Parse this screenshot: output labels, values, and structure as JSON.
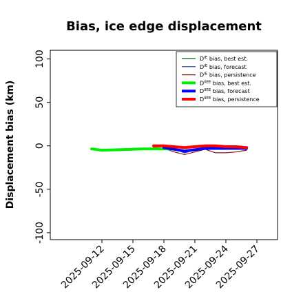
{
  "chart_data": {
    "type": "line",
    "title": "Bias, ice edge displacement",
    "xlabel": "",
    "ylabel": "Displacement bias (km)",
    "ylim": [
      -108,
      110
    ],
    "yticks": [
      -100,
      -50,
      0,
      50,
      100
    ],
    "xlim": [
      "2025-09-07",
      "2025-09-29"
    ],
    "xticks": [
      "2025-09-12",
      "2025-09-15",
      "2025-09-18",
      "2025-09-21",
      "2025-09-24",
      "2025-09-27"
    ],
    "highlight_tick": "2025-09-18",
    "highlight_color": "#228b22",
    "grid": false,
    "legend_position": "upper right",
    "series": [
      {
        "name": "D^IE bias, best est.",
        "color": "#006400",
        "width": 1.2,
        "x": [
          "2025-09-11",
          "2025-09-12",
          "2025-09-15",
          "2025-09-16",
          "2025-09-17",
          "2025-09-18",
          "2025-09-19",
          "2025-09-20"
        ],
        "values": [
          -4,
          -5,
          -4,
          -4,
          -3,
          -3,
          -2,
          -2
        ]
      },
      {
        "name": "D^IE bias, forecast",
        "color": "#1f2f8f",
        "width": 1.2,
        "x": [
          "2025-09-17",
          "2025-09-18",
          "2025-09-19",
          "2025-09-20",
          "2025-09-22",
          "2025-09-23",
          "2025-09-24",
          "2025-09-25",
          "2025-09-26"
        ],
        "values": [
          -3,
          -3,
          -4,
          -8,
          -2,
          -3,
          -3,
          -3,
          -4
        ]
      },
      {
        "name": "D^IE bias, persistence",
        "color": "#8b1a1a",
        "width": 1.2,
        "x": [
          "2025-09-17",
          "2025-09-18",
          "2025-09-19",
          "2025-09-20",
          "2025-09-22",
          "2025-09-23",
          "2025-09-24",
          "2025-09-25",
          "2025-09-26"
        ],
        "values": [
          -2,
          -3,
          -7,
          -10,
          -4,
          -8,
          -8,
          -7,
          -5
        ]
      },
      {
        "name": "D^IIEE bias, best est.",
        "color": "#00ee00",
        "width": 4,
        "x": [
          "2025-09-11",
          "2025-09-12",
          "2025-09-15",
          "2025-09-16",
          "2025-09-17",
          "2025-09-18",
          "2025-09-19"
        ],
        "values": [
          -3.5,
          -5,
          -4,
          -3.5,
          -3.5,
          -3.5,
          -3.5
        ]
      },
      {
        "name": "D^IIEE bias, forecast",
        "color": "#0000ff",
        "width": 4,
        "x": [
          "2025-09-18",
          "2025-09-19",
          "2025-09-20",
          "2025-09-22",
          "2025-09-23",
          "2025-09-24",
          "2025-09-25",
          "2025-09-26"
        ],
        "values": [
          -2,
          -4,
          -6,
          -3,
          -3,
          -3,
          -3,
          -3
        ]
      },
      {
        "name": "D^IIEE bias, persistence",
        "color": "#ff0000",
        "width": 4,
        "x": [
          "2025-09-17",
          "2025-09-18",
          "2025-09-19",
          "2025-09-20",
          "2025-09-22",
          "2025-09-23",
          "2025-09-24",
          "2025-09-25",
          "2025-09-26"
        ],
        "values": [
          0,
          0,
          -1,
          -2,
          0,
          0,
          -1,
          -1,
          -2
        ]
      }
    ],
    "legend": [
      {
        "prefix": "D",
        "sup": "IE",
        "rest": " bias, best est.",
        "color": "#006400",
        "thick": false
      },
      {
        "prefix": "D",
        "sup": "IE",
        "rest": " bias, forecast",
        "color": "#1f2f8f",
        "thick": false
      },
      {
        "prefix": "D",
        "sup": "IE",
        "rest": " bias, persistence",
        "color": "#8b1a1a",
        "thick": false
      },
      {
        "prefix": "D",
        "sup": "IIEE",
        "rest": " bias, best est.",
        "color": "#00ee00",
        "thick": true
      },
      {
        "prefix": "D",
        "sup": "IIEE",
        "rest": " bias, forecast",
        "color": "#0000ff",
        "thick": true
      },
      {
        "prefix": "D",
        "sup": "IIEE",
        "rest": " bias, persistence",
        "color": "#ff0000",
        "thick": true
      }
    ]
  }
}
